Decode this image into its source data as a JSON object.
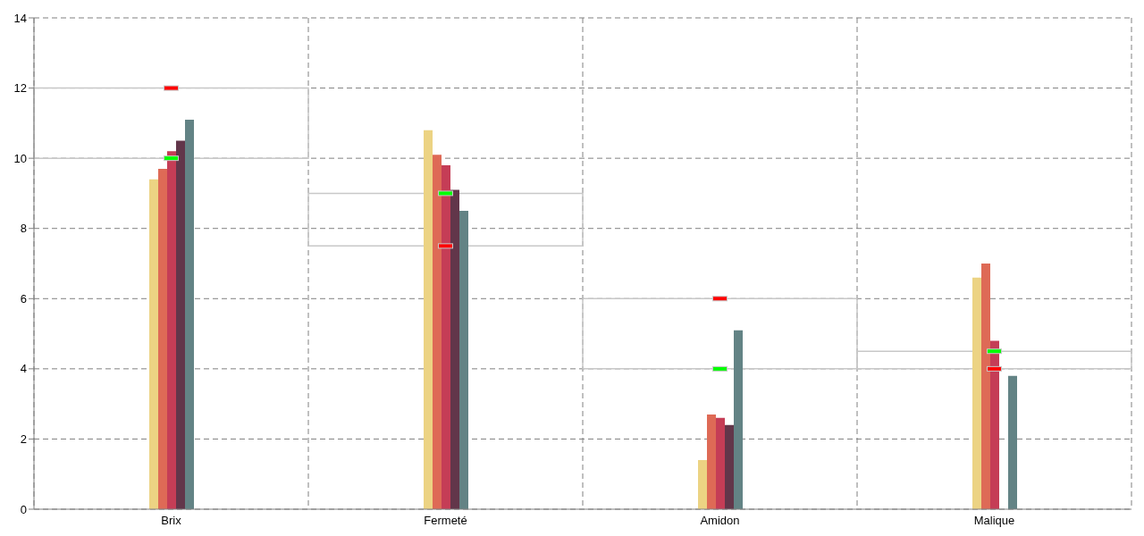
{
  "chart_data": {
    "type": "bar",
    "categories": [
      "Brix",
      "Fermeté",
      "Amidon",
      "Malique"
    ],
    "series": [
      {
        "color": "#ecd383",
        "values": [
          9.4,
          10.8,
          1.4,
          6.6
        ]
      },
      {
        "color": "#de6a56",
        "values": [
          9.7,
          10.1,
          2.7,
          7.0
        ]
      },
      {
        "color": "#c53d56",
        "values": [
          10.2,
          9.8,
          2.6,
          4.8
        ]
      },
      {
        "color": "#62364a",
        "values": [
          10.5,
          9.1,
          2.4,
          0
        ]
      },
      {
        "color": "#638385",
        "values": [
          11.1,
          8.5,
          5.1,
          3.8
        ]
      },
      {
        "type": "scatter",
        "color": "#00ff00",
        "x": [
          "Brix",
          "Fermeté",
          "Amidon",
          "Malique"
        ],
        "values": [
          10,
          9,
          4,
          4.5
        ]
      },
      {
        "type": "scatter",
        "color": "#ff0000",
        "x": [
          "Brix",
          "Fermeté",
          "Amidon",
          "Malique"
        ],
        "values": [
          12,
          7.5,
          6,
          4
        ]
      }
    ],
    "ylim": [
      0,
      14
    ],
    "yticks": [
      0,
      2,
      4,
      6,
      8,
      10,
      12,
      14
    ],
    "grid": true
  }
}
